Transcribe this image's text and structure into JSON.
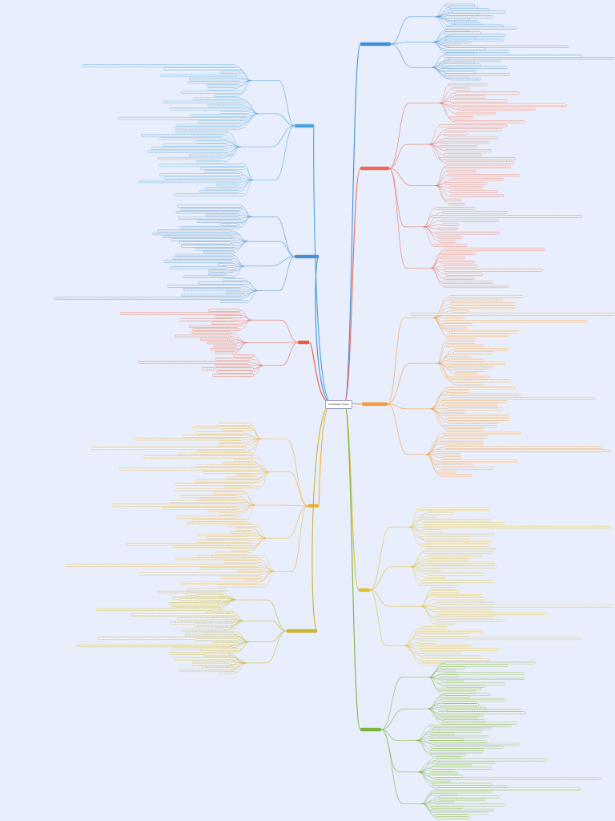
{
  "root": {
    "label": "Criminology Theory"
  },
  "colors": {
    "background": "#e8eefb",
    "blue": "#3f8fd6",
    "sky": "#4aa3df",
    "red": "#ea6a52",
    "orange": "#f29a3c",
    "gold": "#e1bd2f",
    "olive": "#b6c232",
    "green": "#7bb43f"
  },
  "branches": [
    {
      "id": "top-right",
      "color": "#3f8fd6",
      "side": "right"
    },
    {
      "id": "upper-left",
      "color": "#4aa3df",
      "side": "left"
    },
    {
      "id": "red-right",
      "color": "#ea6a52",
      "side": "right"
    },
    {
      "id": "mid-left",
      "color": "#4a8fcf",
      "side": "left"
    },
    {
      "id": "red-left",
      "color": "#ea5a40",
      "side": "left"
    },
    {
      "id": "orange-right",
      "color": "#f29a3c",
      "side": "right"
    },
    {
      "id": "orange-left",
      "color": "#f0b23b",
      "side": "left"
    },
    {
      "id": "gold-right",
      "color": "#e1bd2f",
      "side": "right"
    },
    {
      "id": "olive-left",
      "color": "#c9b52f",
      "side": "left"
    },
    {
      "id": "green-right",
      "color": "#7bb43f",
      "side": "right"
    }
  ]
}
